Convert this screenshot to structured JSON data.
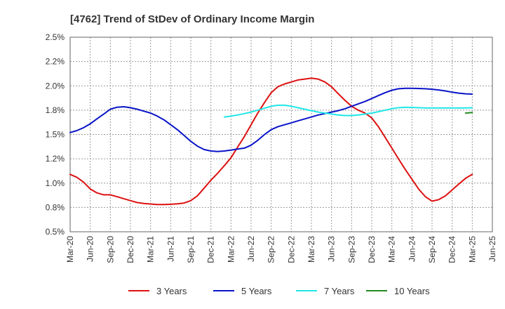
{
  "chart_data": {
    "type": "line",
    "title": "[4762]  Trend of StDev of Ordinary Income Margin",
    "xlabel": "",
    "ylabel": "",
    "x_ticks": [
      "Mar-20",
      "Jun-20",
      "Sep-20",
      "Dec-20",
      "Mar-21",
      "Jun-21",
      "Sep-21",
      "Dec-21",
      "Mar-22",
      "Jun-22",
      "Sep-22",
      "Dec-22",
      "Mar-23",
      "Jun-23",
      "Sep-23",
      "Dec-23",
      "Mar-24",
      "Jun-24",
      "Sep-24",
      "Dec-24",
      "Mar-25",
      "Jun-25"
    ],
    "y_ticks": [
      "0.5%",
      "0.8%",
      "1.0%",
      "1.2%",
      "1.5%",
      "1.8%",
      "2.0%",
      "2.2%",
      "2.5%"
    ],
    "ylim": [
      0.5,
      2.5
    ],
    "grid": true,
    "legend_position": "bottom",
    "series": [
      {
        "name": "3 Years",
        "color": "#dd1111",
        "points": [
          [
            0,
            1.09
          ],
          [
            0.33,
            1.06
          ],
          [
            0.67,
            1.01
          ],
          [
            1,
            0.94
          ],
          [
            1.33,
            0.9
          ],
          [
            1.67,
            0.88
          ],
          [
            2,
            0.88
          ],
          [
            2.33,
            0.86
          ],
          [
            2.67,
            0.84
          ],
          [
            3,
            0.82
          ],
          [
            3.33,
            0.8
          ],
          [
            3.67,
            0.79
          ],
          [
            4,
            0.785
          ],
          [
            4.33,
            0.78
          ],
          [
            4.67,
            0.78
          ],
          [
            5,
            0.782
          ],
          [
            5.33,
            0.787
          ],
          [
            5.67,
            0.795
          ],
          [
            6,
            0.82
          ],
          [
            6.33,
            0.87
          ],
          [
            6.67,
            0.95
          ],
          [
            7,
            1.03
          ],
          [
            7.33,
            1.1
          ],
          [
            7.67,
            1.18
          ],
          [
            8,
            1.26
          ],
          [
            8.33,
            1.37
          ],
          [
            8.67,
            1.48
          ],
          [
            9,
            1.6
          ],
          [
            9.33,
            1.72
          ],
          [
            9.67,
            1.83
          ],
          [
            10,
            1.93
          ],
          [
            10.33,
            1.99
          ],
          [
            10.67,
            2.02
          ],
          [
            11,
            2.04
          ],
          [
            11.33,
            2.06
          ],
          [
            11.67,
            2.07
          ],
          [
            12,
            2.08
          ],
          [
            12.33,
            2.07
          ],
          [
            12.67,
            2.04
          ],
          [
            13,
            1.99
          ],
          [
            13.33,
            1.92
          ],
          [
            13.67,
            1.85
          ],
          [
            14,
            1.79
          ],
          [
            14.33,
            1.75
          ],
          [
            14.67,
            1.72
          ],
          [
            15,
            1.67
          ],
          [
            15.33,
            1.58
          ],
          [
            15.67,
            1.47
          ],
          [
            16,
            1.36
          ],
          [
            16.33,
            1.25
          ],
          [
            16.67,
            1.14
          ],
          [
            17,
            1.04
          ],
          [
            17.33,
            0.94
          ],
          [
            17.67,
            0.86
          ],
          [
            18,
            0.815
          ],
          [
            18.33,
            0.83
          ],
          [
            18.67,
            0.87
          ],
          [
            19,
            0.93
          ],
          [
            19.33,
            0.99
          ],
          [
            19.67,
            1.05
          ],
          [
            20,
            1.09
          ]
        ]
      },
      {
        "name": "5 Years",
        "color": "#0a14c8",
        "points": [
          [
            0,
            1.52
          ],
          [
            0.33,
            1.54
          ],
          [
            0.67,
            1.57
          ],
          [
            1,
            1.61
          ],
          [
            1.33,
            1.66
          ],
          [
            1.67,
            1.71
          ],
          [
            2,
            1.76
          ],
          [
            2.33,
            1.78
          ],
          [
            2.67,
            1.785
          ],
          [
            3,
            1.775
          ],
          [
            3.33,
            1.76
          ],
          [
            3.67,
            1.74
          ],
          [
            4,
            1.72
          ],
          [
            4.33,
            1.69
          ],
          [
            4.67,
            1.65
          ],
          [
            5,
            1.6
          ],
          [
            5.33,
            1.55
          ],
          [
            5.67,
            1.49
          ],
          [
            6,
            1.43
          ],
          [
            6.33,
            1.38
          ],
          [
            6.67,
            1.345
          ],
          [
            7,
            1.33
          ],
          [
            7.33,
            1.325
          ],
          [
            7.67,
            1.33
          ],
          [
            8,
            1.34
          ],
          [
            8.33,
            1.35
          ],
          [
            8.67,
            1.36
          ],
          [
            9,
            1.39
          ],
          [
            9.33,
            1.44
          ],
          [
            9.67,
            1.5
          ],
          [
            10,
            1.55
          ],
          [
            10.33,
            1.58
          ],
          [
            10.67,
            1.6
          ],
          [
            11,
            1.62
          ],
          [
            11.33,
            1.64
          ],
          [
            11.67,
            1.66
          ],
          [
            12,
            1.68
          ],
          [
            12.33,
            1.7
          ],
          [
            12.67,
            1.715
          ],
          [
            13,
            1.73
          ],
          [
            13.33,
            1.745
          ],
          [
            13.67,
            1.765
          ],
          [
            14,
            1.79
          ],
          [
            14.33,
            1.815
          ],
          [
            14.67,
            1.84
          ],
          [
            15,
            1.87
          ],
          [
            15.33,
            1.9
          ],
          [
            15.67,
            1.93
          ],
          [
            16,
            1.955
          ],
          [
            16.33,
            1.97
          ],
          [
            16.67,
            1.975
          ],
          [
            17,
            1.975
          ],
          [
            17.33,
            1.973
          ],
          [
            17.67,
            1.97
          ],
          [
            18,
            1.965
          ],
          [
            18.33,
            1.958
          ],
          [
            18.67,
            1.948
          ],
          [
            19,
            1.935
          ],
          [
            19.33,
            1.925
          ],
          [
            19.67,
            1.918
          ],
          [
            20,
            1.915
          ]
        ]
      },
      {
        "name": "7 Years",
        "color": "#22e6e6",
        "points": [
          [
            7.67,
            1.68
          ],
          [
            8,
            1.69
          ],
          [
            8.33,
            1.7
          ],
          [
            8.67,
            1.715
          ],
          [
            9,
            1.73
          ],
          [
            9.33,
            1.75
          ],
          [
            9.67,
            1.77
          ],
          [
            10,
            1.79
          ],
          [
            10.33,
            1.8
          ],
          [
            10.67,
            1.8
          ],
          [
            11,
            1.79
          ],
          [
            11.33,
            1.775
          ],
          [
            11.67,
            1.76
          ],
          [
            12,
            1.745
          ],
          [
            12.33,
            1.73
          ],
          [
            12.67,
            1.72
          ],
          [
            13,
            1.71
          ],
          [
            13.33,
            1.7
          ],
          [
            13.67,
            1.695
          ],
          [
            14,
            1.695
          ],
          [
            14.33,
            1.7
          ],
          [
            14.67,
            1.71
          ],
          [
            15,
            1.72
          ],
          [
            15.33,
            1.735
          ],
          [
            15.67,
            1.75
          ],
          [
            16,
            1.765
          ],
          [
            16.33,
            1.775
          ],
          [
            16.67,
            1.78
          ],
          [
            17,
            1.778
          ],
          [
            17.33,
            1.775
          ],
          [
            17.67,
            1.773
          ],
          [
            18,
            1.772
          ],
          [
            18.33,
            1.772
          ],
          [
            18.67,
            1.772
          ],
          [
            19,
            1.772
          ],
          [
            19.33,
            1.772
          ],
          [
            19.67,
            1.773
          ],
          [
            20,
            1.775
          ]
        ]
      },
      {
        "name": "10 Years",
        "color": "#228b22",
        "points": [
          [
            19.67,
            1.72
          ],
          [
            20,
            1.725
          ]
        ]
      }
    ]
  }
}
